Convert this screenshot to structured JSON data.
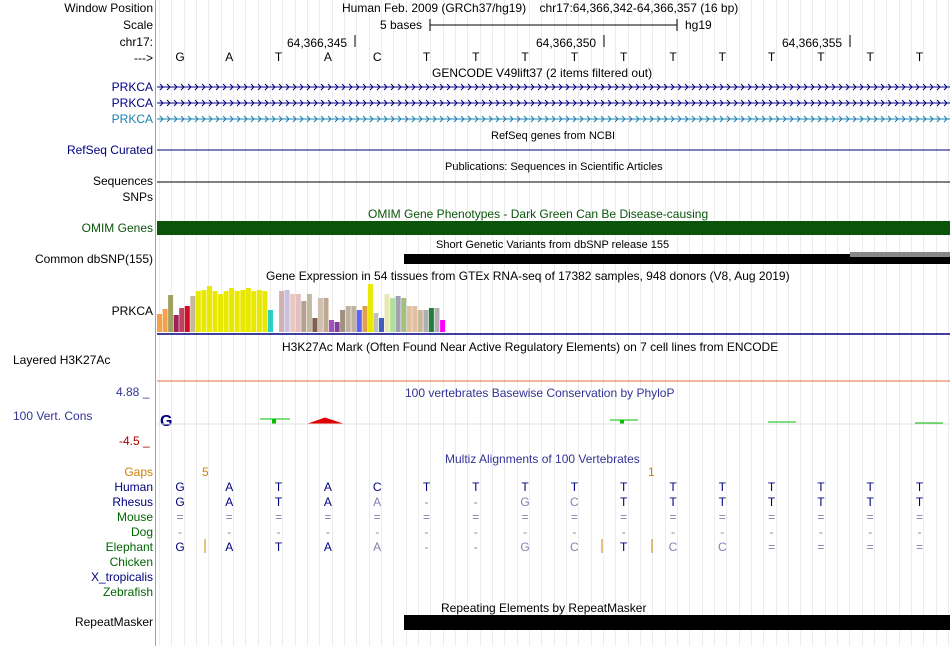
{
  "header": {
    "window_position_label": "Window Position",
    "window_position_text": "Human Feb. 2009 (GRCh37/hg19)    chr17:64,366,342-64,366,357 (16 bp)",
    "scale_label": "Scale",
    "scale_text": "5 bases",
    "scale_assembly": "hg19",
    "chrom_label": "chr17:",
    "positions": [
      "64,366,345",
      "64,366,350",
      "64,366,355"
    ],
    "strand_label": "--->",
    "bases": [
      "G",
      "A",
      "T",
      "A",
      "C",
      "T",
      "T",
      "T",
      "T",
      "T",
      "T",
      "T",
      "T",
      "T",
      "T",
      "T"
    ]
  },
  "tracks": {
    "gencode": {
      "title": "GENCODE V49lift37 (2 items filtered out)",
      "items": [
        {
          "label": "PRKCA",
          "color": "#000080"
        },
        {
          "label": "PRKCA",
          "color": "#000080"
        },
        {
          "label": "PRKCA",
          "color": "#1a7fb0"
        }
      ]
    },
    "refseq": {
      "title": "RefSeq genes from NCBI",
      "label": "RefSeq Curated"
    },
    "publications": {
      "title": "Publications: Sequences in Scientific Articles",
      "label1": "Sequences",
      "label2": "SNPs"
    },
    "omim": {
      "title": "OMIM Gene Phenotypes - Dark Green Can Be Disease-causing",
      "label": "OMIM Genes",
      "color": "#0a550a"
    },
    "dbsnp": {
      "title": "Short Genetic Variants from dbSNP release 155",
      "label": "Common dbSNP(155)"
    },
    "gtex": {
      "title": "Gene Expression in 54 tissues from GTEx RNA-seq of 17382 samples, 948 donors (V8, Aug 2019)",
      "label": "PRKCA"
    },
    "h3k27ac": {
      "title": "H3K27Ac Mark (Often Found Near Active Regulatory Elements) on 7 cell lines from ENCODE",
      "label": "Layered H3K27Ac"
    },
    "phylop": {
      "title": "100 vertebrates Basewise Conservation by PhyloP",
      "label": "100 Vert. Cons",
      "max": "4.88 _",
      "min": "-4.5 _"
    },
    "multiz": {
      "title": "Multiz Alignments of 100 Vertebrates",
      "gaps_label": "Gaps",
      "gap_counts": [
        "5",
        "1"
      ],
      "species": [
        {
          "name": "Human",
          "color": "#000080",
          "row": [
            "G",
            "A",
            "T",
            "A",
            "C",
            "T",
            "T",
            "T",
            "T",
            "T",
            "T",
            "T",
            "T",
            "T",
            "T",
            "T"
          ]
        },
        {
          "name": "Rhesus",
          "color": "#000080",
          "row": [
            "G",
            "A",
            "T",
            "A",
            "A",
            "-",
            "-",
            "G",
            "C",
            "T",
            "T",
            "T",
            "T",
            "T",
            "T",
            "T"
          ]
        },
        {
          "name": "Mouse",
          "color": "#006400",
          "row": [
            "=",
            "=",
            "=",
            "=",
            "=",
            "=",
            "=",
            "=",
            "=",
            "=",
            "=",
            "=",
            "=",
            "=",
            "=",
            "="
          ]
        },
        {
          "name": "Dog",
          "color": "#006400",
          "row": [
            "-",
            "-",
            "-",
            "-",
            "-",
            "-",
            "-",
            "-",
            "-",
            "-",
            "-",
            "-",
            "-",
            "-",
            "-",
            "-"
          ]
        },
        {
          "name": "Elephant",
          "color": "#006400",
          "row": [
            "G",
            "A",
            "T",
            "A",
            "A",
            "-",
            "-",
            "G",
            "C",
            "T",
            "C",
            "C",
            "=",
            "=",
            "=",
            "="
          ]
        },
        {
          "name": "Chicken",
          "color": "#006400",
          "row": []
        },
        {
          "name": "X_tropicalis",
          "color": "#000080",
          "row": []
        },
        {
          "name": "Zebrafish",
          "color": "#006400",
          "row": []
        }
      ]
    },
    "repeatmasker": {
      "title": "Repeating Elements by RepeatMasker",
      "label": "RepeatMasker"
    }
  },
  "gtex_bars": [
    {
      "v": 0.38,
      "c": "#f4a14a"
    },
    {
      "v": 0.47,
      "c": "#f4a14a"
    },
    {
      "v": 0.78,
      "c": "#a0a060"
    },
    {
      "v": 0.35,
      "c": "#a0205a"
    },
    {
      "v": 0.5,
      "c": "#c04060"
    },
    {
      "v": 0.55,
      "c": "#d01020"
    },
    {
      "v": 0.75,
      "c": "#c8b8a0"
    },
    {
      "v": 0.85,
      "c": "#e8e800"
    },
    {
      "v": 0.88,
      "c": "#e8e800"
    },
    {
      "v": 0.95,
      "c": "#e8e800"
    },
    {
      "v": 0.85,
      "c": "#e8e800"
    },
    {
      "v": 0.8,
      "c": "#e8e800"
    },
    {
      "v": 0.85,
      "c": "#e8e800"
    },
    {
      "v": 0.92,
      "c": "#e8e800"
    },
    {
      "v": 0.85,
      "c": "#e8e800"
    },
    {
      "v": 0.88,
      "c": "#e8e800"
    },
    {
      "v": 0.92,
      "c": "#e8e800"
    },
    {
      "v": 0.85,
      "c": "#e8e800"
    },
    {
      "v": 0.88,
      "c": "#e8e800"
    },
    {
      "v": 0.85,
      "c": "#e8e800"
    },
    {
      "v": 0.45,
      "c": "#2ad0c8"
    },
    {
      "v": 0.0,
      "c": "#ffffff"
    },
    {
      "v": 0.85,
      "c": "#d0b0b0"
    },
    {
      "v": 0.88,
      "c": "#c8c0e0"
    },
    {
      "v": 0.8,
      "c": "#e8c8c0"
    },
    {
      "v": 0.8,
      "c": "#e0c0c0"
    },
    {
      "v": 0.65,
      "c": "#b8a090"
    },
    {
      "v": 0.8,
      "c": "#c0b8a0"
    },
    {
      "v": 0.3,
      "c": "#806050"
    },
    {
      "v": 0.7,
      "c": "#d0c0b0"
    },
    {
      "v": 0.7,
      "c": "#c0a890"
    },
    {
      "v": 0.25,
      "c": "#a050c0"
    },
    {
      "v": 0.2,
      "c": "#8040a0"
    },
    {
      "v": 0.45,
      "c": "#a09080"
    },
    {
      "v": 0.55,
      "c": "#c0b0a0"
    },
    {
      "v": 0.55,
      "c": "#c0b0a0"
    },
    {
      "v": 0.45,
      "c": "#6060ff"
    },
    {
      "v": 0.55,
      "c": "#e0a050"
    },
    {
      "v": 1.0,
      "c": "#e8e800"
    },
    {
      "v": 0.4,
      "c": "#c0c0c0"
    },
    {
      "v": 0.3,
      "c": "#4060c0"
    },
    {
      "v": 0.8,
      "c": "#e8e8b0"
    },
    {
      "v": 0.7,
      "c": "#b0e0a0"
    },
    {
      "v": 0.75,
      "c": "#a0a0b0"
    },
    {
      "v": 0.7,
      "c": "#a0c080"
    },
    {
      "v": 0.55,
      "c": "#e0c0a0"
    },
    {
      "v": 0.55,
      "c": "#e0c0a0"
    },
    {
      "v": 0.45,
      "c": "#c8b898"
    },
    {
      "v": 0.45,
      "c": "#b0b0b0"
    },
    {
      "v": 0.5,
      "c": "#208040"
    },
    {
      "v": 0.5,
      "c": "#b0b0b0"
    },
    {
      "v": 0.25,
      "c": "#ff00ff"
    }
  ]
}
